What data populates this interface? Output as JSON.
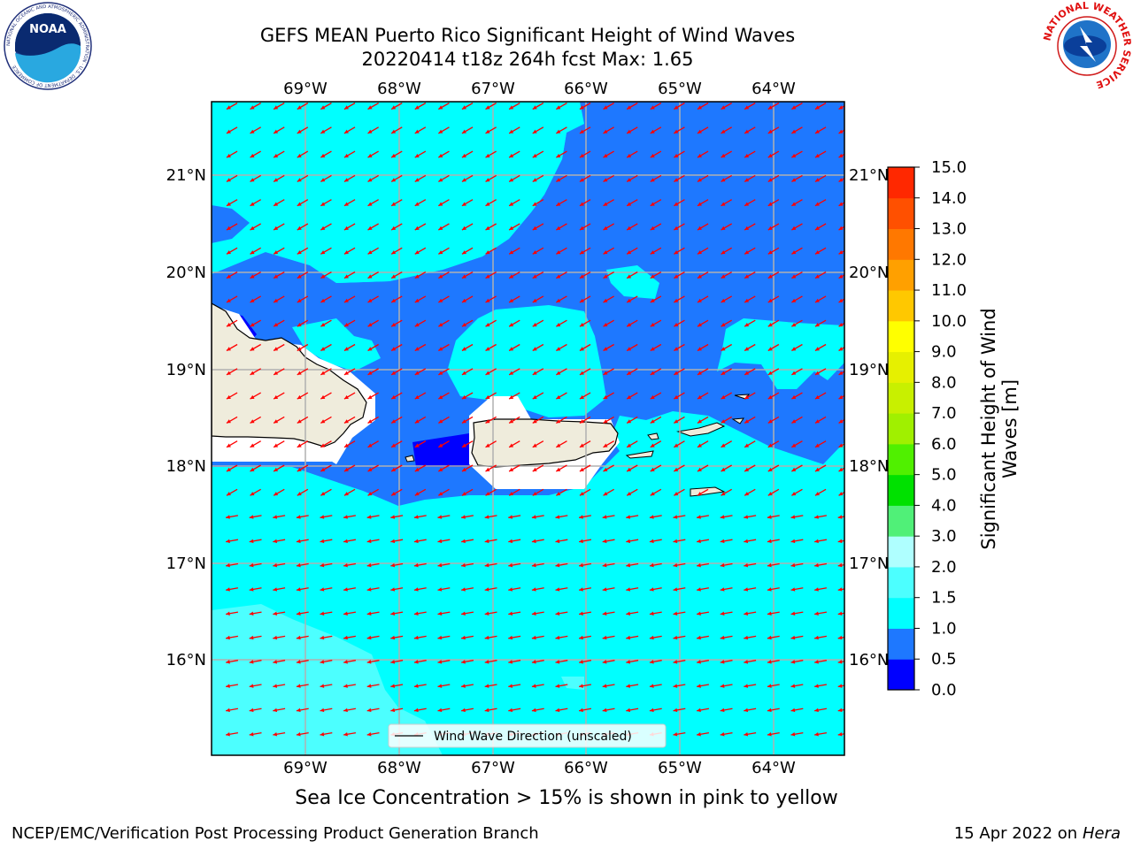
{
  "header": {
    "title_line1": "GEFS MEAN Puerto Rico Significant Height of Wind Waves",
    "title_line2": "20220414 t18z 264h fcst   Max: 1.65"
  },
  "logos": {
    "noaa_text": "NOAA",
    "noaa_ring_text": "NATIONAL OCEANIC AND ATMOSPHERIC ADMINISTRATION · U.S. DEPARTMENT OF COMMERCE",
    "nws_ring_text": "NATIONAL WEATHER SERVICE"
  },
  "map": {
    "lon_labels": [
      "69°W",
      "68°W",
      "67°W",
      "66°W",
      "65°W",
      "64°W"
    ],
    "lat_labels": [
      "21°N",
      "20°N",
      "19°N",
      "18°N",
      "17°N",
      "16°N"
    ],
    "legend_label": "Wind Wave Direction (unscaled)",
    "arrow_color": "#ff0000",
    "land_color": "#efecdc"
  },
  "colorbar": {
    "label_line1": "Significant Height of Wind",
    "label_line2": "Waves [m]",
    "ticks": [
      "0.0",
      "0.5",
      "1.0",
      "1.5",
      "2.0",
      "3.0",
      "4.0",
      "5.0",
      "6.0",
      "7.0",
      "8.0",
      "9.0",
      "10.0",
      "11.0",
      "12.0",
      "13.0",
      "14.0",
      "15.0"
    ],
    "colors": [
      "#0000ff",
      "#1e78ff",
      "#00ffff",
      "#4cffff",
      "#afffff",
      "#50f078",
      "#00e100",
      "#50f000",
      "#a0f000",
      "#c8f000",
      "#e6f000",
      "#ffff00",
      "#ffc800",
      "#ffa000",
      "#ff7800",
      "#ff5000",
      "#ff2800",
      "#ff0000"
    ]
  },
  "footer": {
    "note": "Sea Ice Concentration > 15% is shown in pink to yellow",
    "left": "NCEP/EMC/Verification Post Processing Product Generation Branch",
    "right_date": "15 Apr 2022 on",
    "right_host": "Hera"
  }
}
